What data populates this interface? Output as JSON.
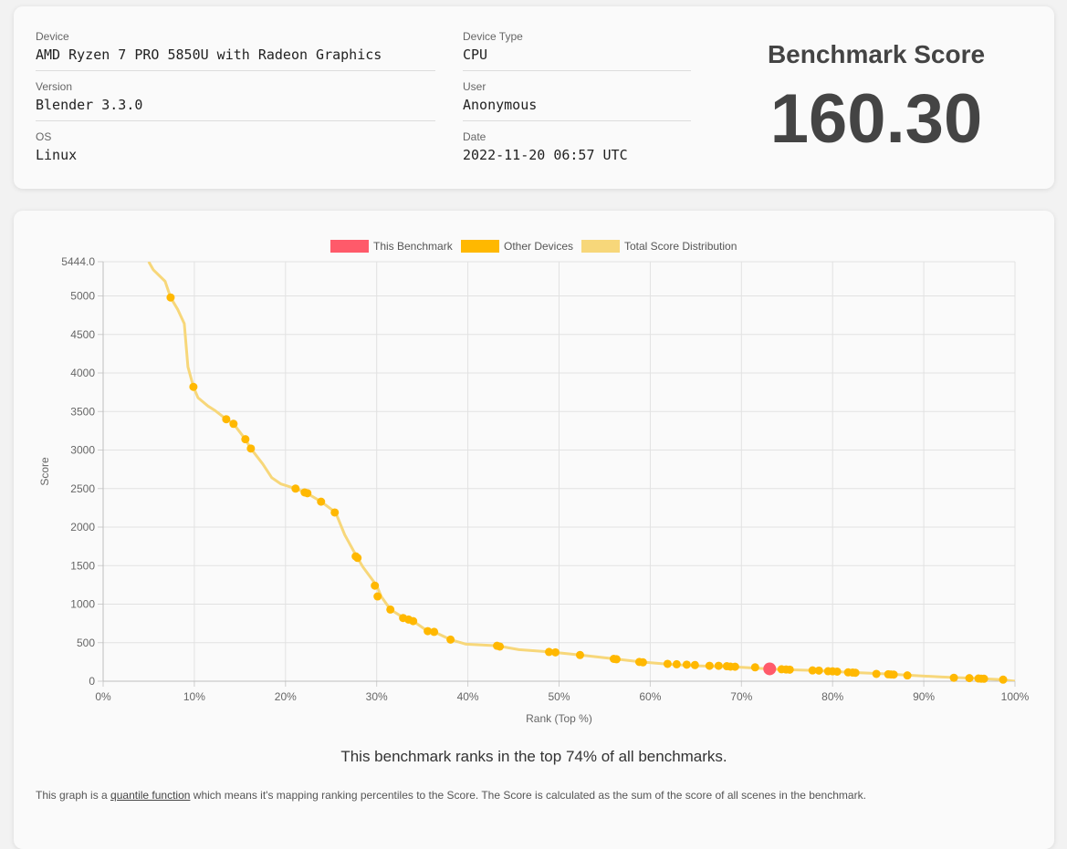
{
  "info": {
    "device_label": "Device",
    "device_value": "AMD Ryzen 7 PRO 5850U with Radeon Graphics",
    "version_label": "Version",
    "version_value": "Blender 3.3.0",
    "os_label": "OS",
    "os_value": "Linux",
    "device_type_label": "Device Type",
    "device_type_value": "CPU",
    "user_label": "User",
    "user_value": "Anonymous",
    "date_label": "Date",
    "date_value": "2022-11-20 06:57 UTC"
  },
  "score": {
    "title": "Benchmark Score",
    "value": "160.30"
  },
  "rank_text": "This benchmark ranks in the top 74% of all benchmarks.",
  "explain": {
    "prefix": "This graph is a ",
    "link": "quantile function",
    "suffix": " which means it's mapping ranking percentiles to the Score. The Score is calculated as the sum of the score of all scenes in the benchmark."
  },
  "colors": {
    "this_benchmark": "#ff5a6a",
    "other_devices": "#ffb800",
    "distribution": "#f7d77a"
  },
  "chart_data": {
    "type": "scatter",
    "xlabel": "Rank (Top %)",
    "ylabel": "Score",
    "xlim": [
      0,
      100
    ],
    "ylim": [
      0,
      5444.0
    ],
    "x_ticks": [
      "0%",
      "10%",
      "20%",
      "30%",
      "40%",
      "50%",
      "60%",
      "70%",
      "80%",
      "90%",
      "100%"
    ],
    "y_ticks": [
      "0",
      "500",
      "1000",
      "1500",
      "2000",
      "2500",
      "3000",
      "3500",
      "4000",
      "4500",
      "5000",
      "5444.0"
    ],
    "legend": [
      "This Benchmark",
      "Other Devices",
      "Total Score Distribution"
    ],
    "legend_position": "top",
    "grid": true,
    "series": [
      {
        "name": "Total Score Distribution",
        "type": "line",
        "x": [
          5,
          5.5,
          6.8,
          7.4,
          8.2,
          8.9,
          9.3,
          9.9,
          10.4,
          11.5,
          12.3,
          13.5,
          14.3,
          15.6,
          16.2,
          17.5,
          18.5,
          19.5,
          21.1,
          22.2,
          23.9,
          25.5,
          26.5,
          27.8,
          28.5,
          30,
          30.5,
          31.5,
          33,
          34,
          35.6,
          36.3,
          38.1,
          39.8,
          43.2,
          45.6,
          49,
          52.3,
          56.1,
          59,
          62,
          65,
          68,
          70,
          73,
          74.5,
          78,
          80,
          83,
          86,
          88,
          92,
          96,
          98.5,
          100
        ],
        "y": [
          5444,
          5340,
          5190,
          4980,
          4820,
          4640,
          4080,
          3820,
          3680,
          3570,
          3510,
          3400,
          3340,
          3140,
          3020,
          2820,
          2640,
          2560,
          2500,
          2450,
          2330,
          2190,
          1900,
          1620,
          1480,
          1240,
          1100,
          930,
          820,
          780,
          650,
          640,
          540,
          480,
          460,
          410,
          380,
          340,
          290,
          250,
          220,
          200,
          190,
          180,
          160,
          150,
          140,
          125,
          110,
          95,
          80,
          55,
          35,
          20,
          0
        ]
      },
      {
        "name": "Other Devices",
        "type": "scatter",
        "x": [
          7.4,
          9.9,
          13.5,
          14.3,
          15.6,
          16.2,
          21.1,
          22.1,
          22.4,
          23.9,
          25.4,
          27.7,
          27.9,
          29.8,
          30.1,
          31.5,
          32.9,
          33.5,
          34.0,
          35.6,
          36.3,
          38.1,
          43.2,
          43.5,
          48.9,
          49.6,
          52.3,
          56.0,
          56.3,
          58.8,
          59.2,
          61.9,
          62.9,
          64.0,
          64.9,
          66.5,
          67.5,
          68.4,
          68.8,
          69.3,
          71.5,
          74.4,
          74.9,
          75.3,
          77.8,
          78.5,
          79.5,
          80.0,
          80.5,
          81.7,
          82.2,
          82.5,
          84.8,
          86.1,
          86.4,
          86.7,
          88.2,
          93.3,
          95.0,
          96.0,
          96.3,
          96.6,
          98.7
        ],
        "y": [
          4980,
          3820,
          3400,
          3340,
          3140,
          3020,
          2500,
          2450,
          2440,
          2330,
          2190,
          1620,
          1600,
          1240,
          1100,
          930,
          820,
          800,
          780,
          650,
          640,
          540,
          460,
          450,
          380,
          375,
          340,
          290,
          285,
          250,
          245,
          225,
          220,
          215,
          210,
          200,
          200,
          195,
          190,
          188,
          180,
          155,
          152,
          150,
          140,
          138,
          130,
          128,
          125,
          115,
          112,
          110,
          95,
          90,
          88,
          86,
          75,
          45,
          40,
          35,
          33,
          32,
          20
        ]
      },
      {
        "name": "This Benchmark",
        "type": "scatter",
        "x": [
          73.1
        ],
        "y": [
          160.3
        ]
      }
    ]
  }
}
